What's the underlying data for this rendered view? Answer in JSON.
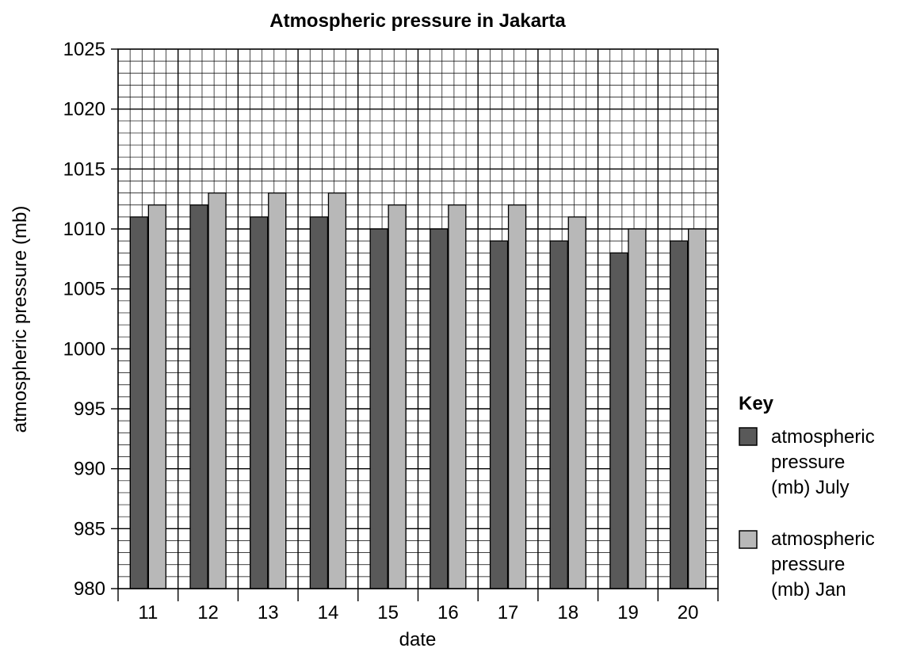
{
  "chart_data": {
    "type": "bar",
    "title": "Atmospheric pressure in Jakarta",
    "xlabel": "date",
    "ylabel": "atmospheric pressure (mb)",
    "categories": [
      "11",
      "12",
      "13",
      "14",
      "15",
      "16",
      "17",
      "18",
      "19",
      "20"
    ],
    "series": [
      {
        "name": "atmospheric pressure (mb) July",
        "legend_lines": [
          "atmospheric",
          "pressure",
          "(mb) July"
        ],
        "color": "#595959",
        "values": [
          1011,
          1012,
          1011,
          1011,
          1010,
          1010,
          1009,
          1009,
          1008,
          1009
        ]
      },
      {
        "name": "atmospheric pressure (mb) Jan",
        "legend_lines": [
          "atmospheric",
          "pressure",
          "(mb) Jan"
        ],
        "color": "#b8b8b8",
        "values": [
          1012,
          1013,
          1013,
          1013,
          1012,
          1012,
          1012,
          1011,
          1010,
          1010
        ]
      }
    ],
    "ylim": [
      980,
      1025
    ],
    "yticks": [
      "980",
      "985",
      "990",
      "995",
      "1000",
      "1005",
      "1010",
      "1015",
      "1020",
      "1025"
    ],
    "grid": true,
    "legend_title": "Key",
    "legend_position": "right"
  }
}
